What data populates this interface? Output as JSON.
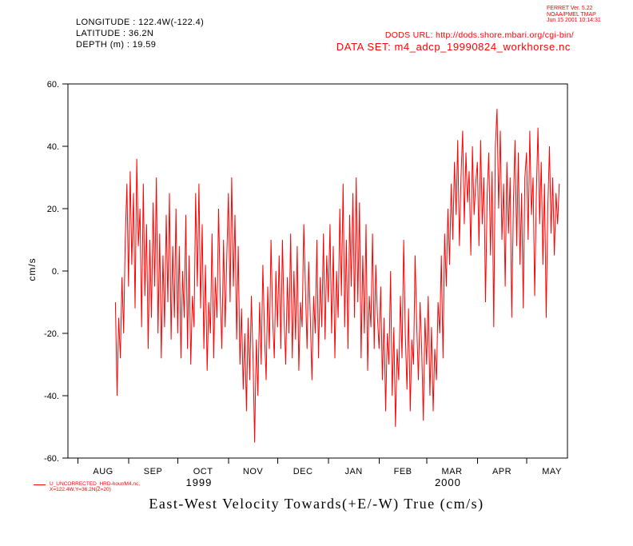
{
  "header": {
    "longitude": "LONGITUDE : 122.4W(-122.4)",
    "latitude": "LATITUDE : 36.2N",
    "depth": "DEPTH (m) : 19.59"
  },
  "ferret_info": {
    "line1": "FERRET Ver. 5.22",
    "line2": "NOAA/PMEL TMAP",
    "line3": "Jun 15 2001 10:14:31"
  },
  "dataset_info": {
    "dods_url": "DODS URL: http://dods.shore.mbari.org/cgi-bin/",
    "data_set": "DATA SET: m4_adcp_19990824_workhorse.nc"
  },
  "legend": {
    "line1": "U_UNCORRECTED_HRD-hour/M4.nc,",
    "line2": "X=122.4W,Y=36.2N(Z=20)"
  },
  "title": "East-West Velocity Towards(+E/-W) True (cm/s)",
  "colors": {
    "series": "#ff0000",
    "annotation_red": "#ff0000",
    "axis": "#000000",
    "background": "#ffffff"
  },
  "chart_data": {
    "type": "line",
    "title": "East-West Velocity Towards(+E/-W) True (cm/s)",
    "xlabel": "",
    "ylabel": "cm/s",
    "ylim": [
      -60,
      60
    ],
    "grid": false,
    "legend_position": "bottom-left",
    "yticks": [
      {
        "value": 60,
        "label": "60."
      },
      {
        "value": 40,
        "label": "40."
      },
      {
        "value": 20,
        "label": "20."
      },
      {
        "value": 0,
        "label": "0."
      },
      {
        "value": -20,
        "label": "-20."
      },
      {
        "value": -40,
        "label": "-40."
      },
      {
        "value": -60,
        "label": "-60."
      }
    ],
    "x_axis": {
      "domain_days": [
        -6,
        299
      ],
      "month_ticks_days": [
        0,
        31,
        61,
        92,
        122,
        153,
        184,
        213,
        244,
        274
      ],
      "month_labels": [
        "AUG",
        "SEP",
        "OCT",
        "NOV",
        "DEC",
        "JAN",
        "FEB",
        "MAR",
        "APR",
        "MAY"
      ],
      "year_labels": [
        {
          "label": "1999",
          "center_day": 74
        },
        {
          "label": "2000",
          "center_day": 226
        }
      ]
    },
    "series": [
      {
        "name": "U_UNCORRECTED",
        "color": "#ff0000",
        "start_day": 23,
        "day_step": 1,
        "values": [
          -10,
          -40,
          -15,
          -28,
          -2,
          -20,
          10,
          28,
          -5,
          32,
          2,
          25,
          -12,
          36,
          8,
          20,
          -18,
          28,
          -8,
          15,
          -25,
          10,
          -15,
          22,
          -5,
          30,
          -20,
          12,
          -28,
          5,
          -18,
          18,
          -10,
          25,
          -22,
          8,
          -15,
          20,
          -20,
          8,
          -28,
          0,
          -15,
          18,
          -25,
          5,
          -30,
          -8,
          -18,
          25,
          -5,
          28,
          -12,
          15,
          -25,
          2,
          -32,
          -10,
          -20,
          12,
          -28,
          -2,
          -15,
          20,
          -8,
          -25,
          10,
          -18,
          5,
          25,
          -10,
          30,
          -5,
          18,
          -22,
          8,
          -30,
          -12,
          -38,
          -20,
          -45,
          -15,
          -35,
          -8,
          -28,
          -55,
          -22,
          -40,
          -10,
          -30,
          2,
          -20,
          -35,
          -5,
          -25,
          10,
          -15,
          -28,
          0,
          -18,
          5,
          -25,
          10,
          -15,
          -30,
          -2,
          -20,
          12,
          -28,
          0,
          -22,
          8,
          -32,
          -10,
          -18,
          15,
          -5,
          -25,
          3,
          -15,
          -35,
          -8,
          -20,
          10,
          -28,
          -2,
          -18,
          12,
          -22,
          5,
          -10,
          15,
          -20,
          8,
          -28,
          0,
          -15,
          20,
          -8,
          28,
          -18,
          10,
          -25,
          18,
          -5,
          25,
          -15,
          30,
          -10,
          22,
          -28,
          5,
          -20,
          15,
          -32,
          -8,
          -18,
          12,
          -25,
          2,
          -15,
          -25,
          -5,
          -35,
          -15,
          -45,
          -20,
          -30,
          0,
          -40,
          -18,
          -50,
          -25,
          -35,
          -8,
          -28,
          10,
          -20,
          -38,
          -12,
          -45,
          -22,
          -30,
          5,
          -18,
          -35,
          -10,
          -25,
          -48,
          -15,
          -30,
          -8,
          -40,
          -18,
          -45,
          -25,
          -35,
          -10,
          -20,
          5,
          -28,
          12,
          -5,
          20,
          2,
          28,
          10,
          35,
          18,
          42,
          8,
          30,
          45,
          15,
          38,
          22,
          32,
          5,
          40,
          18,
          28,
          35,
          8,
          42,
          15,
          30,
          -10,
          25,
          38,
          5,
          32,
          -18,
          40,
          52,
          20,
          45,
          10,
          28,
          -5,
          35,
          12,
          30,
          -15,
          22,
          42,
          8,
          38,
          2,
          25,
          -12,
          30,
          38,
          10,
          45,
          18,
          30,
          -8,
          25,
          46,
          15,
          35,
          2,
          28,
          -15,
          20,
          40,
          12,
          30,
          5,
          25,
          15,
          28
        ]
      }
    ]
  }
}
